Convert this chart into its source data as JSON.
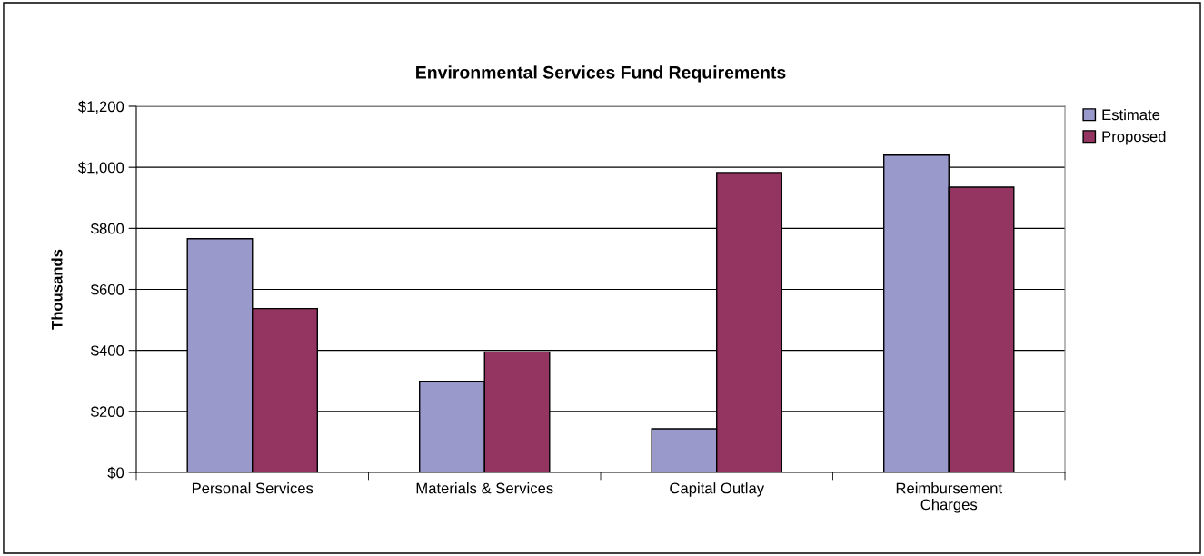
{
  "chart_data": {
    "type": "bar",
    "title": "Environmental Services Fund Requirements",
    "ylabel": "Thousands",
    "categories": [
      "Personal Services",
      "Materials & Services",
      "Capital Outlay",
      "Reimbursement\nCharges"
    ],
    "series": [
      {
        "name": "Estimate",
        "color": "#9999cc",
        "values": [
          766,
          299,
          143,
          1040
        ]
      },
      {
        "name": "Proposed",
        "color": "#943460",
        "values": [
          537,
          395,
          983,
          935
        ]
      }
    ],
    "ylim": [
      0,
      1200
    ],
    "yticks": [
      {
        "value": 0,
        "label": "$0"
      },
      {
        "value": 200,
        "label": "$200"
      },
      {
        "value": 400,
        "label": "$400"
      },
      {
        "value": 600,
        "label": "$600"
      },
      {
        "value": 800,
        "label": "$800"
      },
      {
        "value": 1000,
        "label": "$1,000"
      },
      {
        "value": 1200,
        "label": "$1,200"
      }
    ],
    "grid": "y",
    "legend": "top right"
  }
}
